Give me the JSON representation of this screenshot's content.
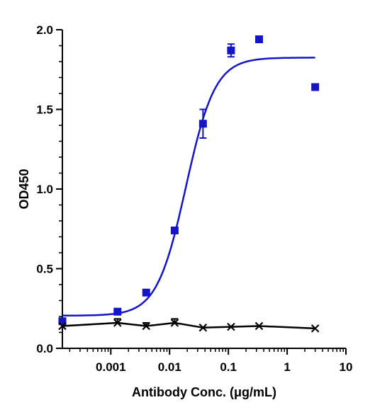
{
  "chart_data": {
    "type": "scatter",
    "xlabel": "Antibody Conc. (μg/mL)",
    "ylabel": "OD450",
    "xscale": "log",
    "xlim": [
      0.00015,
      10
    ],
    "ylim": [
      0,
      2.0
    ],
    "x_ticks": [
      {
        "value": 0.001,
        "label": "0.001"
      },
      {
        "value": 0.01,
        "label": "0.01"
      },
      {
        "value": 0.1,
        "label": "0.1"
      },
      {
        "value": 1,
        "label": "1"
      },
      {
        "value": 10,
        "label": "10"
      }
    ],
    "y_ticks": [
      {
        "value": 0,
        "label": "0.0"
      },
      {
        "value": 0.5,
        "label": "0.5"
      },
      {
        "value": 1.0,
        "label": "1.0"
      },
      {
        "value": 1.5,
        "label": "1.5"
      },
      {
        "value": 2.0,
        "label": "2.0"
      }
    ],
    "grid": false,
    "legend": "none",
    "series": [
      {
        "color": "#1414c8",
        "marker": "square",
        "curve": "sigmoid-fit",
        "x": [
          0.00015,
          0.0013,
          0.004,
          0.0122,
          0.037,
          0.111,
          0.333,
          3.0
        ],
        "y": [
          0.17,
          0.23,
          0.35,
          0.74,
          1.41,
          1.87,
          1.94,
          1.64
        ],
        "err": [
          0.01,
          0.01,
          0.01,
          0.01,
          0.09,
          0.04,
          0.01,
          0.01
        ],
        "fit": {
          "bottom": 0.205,
          "top": 1.825,
          "ec50": 0.019,
          "hill": 1.75
        }
      },
      {
        "color": "#000000",
        "marker": "x",
        "curve": "connected",
        "x": [
          0.00015,
          0.0013,
          0.004,
          0.0122,
          0.037,
          0.111,
          0.333,
          3.0
        ],
        "y": [
          0.14,
          0.16,
          0.14,
          0.16,
          0.13,
          0.135,
          0.14,
          0.125
        ],
        "err": [
          0.0,
          0.025,
          0.02,
          0.025,
          0.0,
          0.0,
          0.0,
          0.0
        ]
      }
    ]
  }
}
